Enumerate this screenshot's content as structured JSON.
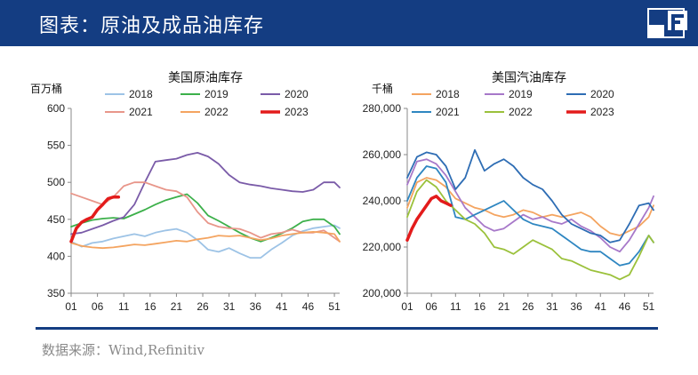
{
  "header": {
    "title": "图表：原油及成品油库存"
  },
  "footer": {
    "source": "数据来源：Wind,Refinitiv"
  },
  "chart_data": [
    {
      "type": "line",
      "title": "美国原油库存",
      "ylabel": "百万桶",
      "ylim": [
        350,
        600
      ],
      "yticks": [
        "350",
        "400",
        "450",
        "500",
        "550",
        "600"
      ],
      "xlim": [
        1,
        52
      ],
      "xticks": [
        "01",
        "06",
        "11",
        "16",
        "21",
        "26",
        "31",
        "36",
        "41",
        "46",
        "51"
      ],
      "legend_placement": "top",
      "series": [
        {
          "name": "2018",
          "color": "#9dc3e6",
          "x": [
            1,
            3,
            5,
            7,
            9,
            11,
            13,
            15,
            17,
            19,
            21,
            23,
            25,
            27,
            29,
            31,
            33,
            35,
            37,
            39,
            41,
            43,
            45,
            47,
            49,
            51,
            52
          ],
          "values": [
            420,
            413,
            418,
            420,
            424,
            427,
            430,
            427,
            432,
            435,
            437,
            432,
            422,
            409,
            406,
            411,
            404,
            398,
            398,
            409,
            418,
            428,
            434,
            438,
            440,
            442,
            438
          ]
        },
        {
          "name": "2019",
          "color": "#3cb04a",
          "x": [
            1,
            3,
            5,
            7,
            9,
            11,
            13,
            15,
            17,
            19,
            21,
            23,
            25,
            27,
            29,
            31,
            33,
            35,
            37,
            39,
            41,
            43,
            45,
            47,
            49,
            51,
            52
          ],
          "values": [
            440,
            445,
            449,
            451,
            452,
            451,
            457,
            463,
            470,
            476,
            480,
            484,
            472,
            455,
            448,
            440,
            432,
            425,
            420,
            425,
            431,
            438,
            447,
            450,
            450,
            440,
            430
          ]
        },
        {
          "name": "2020",
          "color": "#7a5ba8",
          "x": [
            1,
            3,
            5,
            7,
            9,
            11,
            13,
            15,
            17,
            19,
            21,
            23,
            25,
            27,
            29,
            31,
            33,
            35,
            37,
            39,
            41,
            43,
            45,
            47,
            49,
            51,
            52
          ],
          "values": [
            430,
            432,
            437,
            442,
            448,
            453,
            470,
            500,
            528,
            530,
            532,
            537,
            540,
            535,
            525,
            510,
            500,
            497,
            495,
            492,
            490,
            488,
            487,
            490,
            500,
            500,
            493
          ]
        },
        {
          "name": "2021",
          "color": "#e8968a",
          "x": [
            1,
            3,
            5,
            7,
            9,
            11,
            13,
            15,
            17,
            19,
            21,
            23,
            25,
            27,
            29,
            31,
            33,
            35,
            37,
            39,
            41,
            43,
            45,
            47,
            49,
            51,
            52
          ],
          "values": [
            485,
            480,
            475,
            470,
            480,
            495,
            500,
            500,
            495,
            490,
            488,
            480,
            460,
            445,
            440,
            438,
            437,
            432,
            425,
            430,
            432,
            436,
            432,
            432,
            435,
            425,
            420
          ]
        },
        {
          "name": "2022",
          "color": "#f4a460",
          "x": [
            1,
            3,
            5,
            7,
            9,
            11,
            13,
            15,
            17,
            19,
            21,
            23,
            25,
            27,
            29,
            31,
            33,
            35,
            37,
            39,
            41,
            43,
            45,
            47,
            49,
            51,
            52
          ],
          "values": [
            418,
            414,
            412,
            411,
            412,
            414,
            416,
            415,
            417,
            419,
            421,
            420,
            423,
            425,
            428,
            427,
            428,
            425,
            422,
            424,
            428,
            430,
            432,
            433,
            432,
            430,
            420
          ]
        },
        {
          "name": "2023",
          "color": "#e31b1b",
          "x": [
            1,
            2,
            3,
            4,
            5,
            6,
            7,
            8,
            9,
            10
          ],
          "values": [
            420,
            438,
            446,
            450,
            453,
            463,
            470,
            478,
            480,
            480
          ]
        }
      ]
    },
    {
      "type": "line",
      "title": "美国汽油库存",
      "ylabel": "千桶",
      "ylim": [
        200000,
        280000
      ],
      "yticks": [
        "200,000",
        "220,000",
        "240,000",
        "260,000",
        "280,000"
      ],
      "xlim": [
        1,
        52
      ],
      "xticks": [
        "01",
        "06",
        "11",
        "16",
        "21",
        "26",
        "31",
        "36",
        "41",
        "46",
        "51"
      ],
      "legend_placement": "top",
      "series": [
        {
          "name": "2018",
          "color": "#f4a460",
          "x": [
            1,
            3,
            5,
            7,
            9,
            11,
            13,
            15,
            17,
            19,
            21,
            23,
            25,
            27,
            29,
            31,
            33,
            35,
            37,
            39,
            41,
            43,
            45,
            47,
            49,
            51,
            52
          ],
          "values": [
            237000,
            248000,
            250000,
            249000,
            246000,
            241000,
            239000,
            237000,
            236000,
            234000,
            233000,
            234000,
            236000,
            235000,
            233000,
            234000,
            233000,
            234000,
            235000,
            233000,
            229000,
            226000,
            225000,
            227000,
            229000,
            233000,
            238000
          ]
        },
        {
          "name": "2019",
          "color": "#a778c9",
          "x": [
            1,
            3,
            5,
            7,
            9,
            11,
            13,
            15,
            17,
            19,
            21,
            23,
            25,
            27,
            29,
            31,
            33,
            35,
            37,
            39,
            41,
            43,
            45,
            47,
            49,
            51,
            52
          ],
          "values": [
            247000,
            257000,
            258000,
            256000,
            251000,
            244000,
            237000,
            233000,
            229000,
            227000,
            228000,
            231000,
            234000,
            232000,
            233000,
            231000,
            230000,
            232000,
            229000,
            227000,
            224000,
            220000,
            218000,
            223000,
            230000,
            237000,
            242000
          ]
        },
        {
          "name": "2020",
          "color": "#2e6db4",
          "x": [
            1,
            3,
            5,
            7,
            9,
            11,
            13,
            15,
            17,
            19,
            21,
            23,
            25,
            27,
            29,
            31,
            33,
            35,
            37,
            39,
            41,
            43,
            45,
            47,
            49,
            51,
            52
          ],
          "values": [
            250000,
            259000,
            261000,
            260000,
            255000,
            245000,
            250000,
            262000,
            253000,
            256000,
            258000,
            255000,
            250000,
            247000,
            245000,
            240000,
            234000,
            230000,
            228000,
            226000,
            225000,
            222000,
            223000,
            230000,
            238000,
            239000,
            236000
          ]
        },
        {
          "name": "2021",
          "color": "#2e86c1",
          "x": [
            1,
            3,
            5,
            7,
            9,
            11,
            13,
            15,
            17,
            19,
            21,
            23,
            25,
            27,
            29,
            31,
            33,
            35,
            37,
            39,
            41,
            43,
            45,
            47,
            49,
            51,
            52
          ],
          "values": [
            240000,
            250000,
            255000,
            254000,
            248000,
            233000,
            232000,
            234000,
            236000,
            238000,
            240000,
            236000,
            232000,
            230000,
            229000,
            228000,
            225000,
            222000,
            219000,
            218000,
            218000,
            215000,
            212000,
            213000,
            218000,
            225000,
            222000
          ]
        },
        {
          "name": "2022",
          "color": "#9bc13b",
          "x": [
            1,
            3,
            5,
            7,
            9,
            11,
            13,
            15,
            17,
            19,
            21,
            23,
            25,
            27,
            29,
            31,
            33,
            35,
            37,
            39,
            41,
            43,
            45,
            47,
            49,
            51,
            52
          ],
          "values": [
            233000,
            244000,
            249000,
            246000,
            240000,
            236000,
            232000,
            230000,
            226000,
            220000,
            219000,
            217000,
            220000,
            223000,
            221000,
            219000,
            215000,
            214000,
            212000,
            210000,
            209000,
            208000,
            206000,
            208000,
            216000,
            225000,
            222000
          ]
        },
        {
          "name": "2023",
          "color": "#e31b1b",
          "x": [
            1,
            2,
            3,
            4,
            5,
            6,
            7,
            8,
            9,
            10
          ],
          "values": [
            223000,
            228000,
            232000,
            235000,
            238000,
            241000,
            242000,
            240000,
            239000,
            238000
          ]
        }
      ]
    }
  ]
}
